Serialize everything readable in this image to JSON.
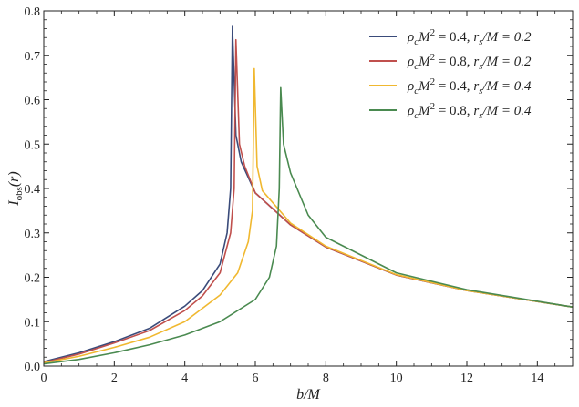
{
  "chart_data": {
    "type": "line",
    "title": "",
    "xlabel": "b/M",
    "ylabel": "I_obs(r)",
    "xlim": [
      0,
      15
    ],
    "ylim": [
      0,
      0.8
    ],
    "xticks": [
      0,
      2,
      4,
      6,
      8,
      10,
      12,
      14
    ],
    "yticks": [
      0.0,
      0.1,
      0.2,
      0.3,
      0.4,
      0.5,
      0.6,
      0.7,
      0.8
    ],
    "xtick_labels": [
      "0",
      "2",
      "4",
      "6",
      "8",
      "10",
      "12",
      "14"
    ],
    "ytick_labels": [
      "0.0",
      "0.1",
      "0.2",
      "0.3",
      "0.4",
      "0.5",
      "0.6",
      "0.7",
      "0.8"
    ],
    "grid": false,
    "legend_position": "top-right",
    "series": [
      {
        "name": "ρcM² = 0.4, rs/M = 0.2",
        "color": "#3a4b7a",
        "x": [
          0,
          1,
          2,
          3,
          4,
          4.5,
          5.0,
          5.2,
          5.3,
          5.35,
          5.45,
          5.6,
          6.0,
          7.0,
          8.0,
          10.0,
          12.0,
          15.0
        ],
        "y": [
          0.01,
          0.03,
          0.055,
          0.085,
          0.135,
          0.17,
          0.23,
          0.3,
          0.4,
          0.765,
          0.52,
          0.46,
          0.39,
          0.318,
          0.268,
          0.205,
          0.17,
          0.133
        ]
      },
      {
        "name": "ρcM² = 0.8, rs/M = 0.2",
        "color": "#c0504d",
        "x": [
          0,
          1,
          2,
          3,
          4,
          4.5,
          5.0,
          5.3,
          5.4,
          5.45,
          5.55,
          5.7,
          6.0,
          7.0,
          8.0,
          10.0,
          12.0,
          15.0
        ],
        "y": [
          0.008,
          0.027,
          0.052,
          0.08,
          0.125,
          0.158,
          0.21,
          0.3,
          0.4,
          0.735,
          0.5,
          0.45,
          0.39,
          0.318,
          0.268,
          0.205,
          0.17,
          0.133
        ]
      },
      {
        "name": "ρcM² = 0.4, rs/M = 0.4",
        "color": "#f0b830",
        "x": [
          0,
          1,
          2,
          3,
          4,
          5,
          5.5,
          5.8,
          5.92,
          5.97,
          6.05,
          6.2,
          7.0,
          8.0,
          10.0,
          12.0,
          15.0
        ],
        "y": [
          0.007,
          0.022,
          0.042,
          0.065,
          0.1,
          0.16,
          0.21,
          0.28,
          0.35,
          0.67,
          0.45,
          0.395,
          0.322,
          0.27,
          0.206,
          0.17,
          0.133
        ]
      },
      {
        "name": "ρcM² = 0.8, rs/M = 0.4",
        "color": "#4a8a50",
        "x": [
          0,
          1,
          2,
          3,
          4,
          5,
          6.0,
          6.4,
          6.6,
          6.68,
          6.72,
          6.8,
          7.0,
          7.5,
          8.0,
          10.0,
          12.0,
          15.0
        ],
        "y": [
          0.005,
          0.015,
          0.03,
          0.048,
          0.07,
          0.1,
          0.15,
          0.2,
          0.27,
          0.4,
          0.627,
          0.5,
          0.435,
          0.34,
          0.29,
          0.21,
          0.172,
          0.133
        ]
      }
    ]
  },
  "legend": {
    "entries": [
      {
        "rho": "ρ",
        "rho_sub": "c",
        "m": "M",
        "m_sup": "2",
        "eq1": " = 0.4, ",
        "r": "r",
        "r_sub": "s",
        "tail": "/M = 0.2"
      },
      {
        "rho": "ρ",
        "rho_sub": "c",
        "m": "M",
        "m_sup": "2",
        "eq1": " = 0.8, ",
        "r": "r",
        "r_sub": "s",
        "tail": "/M = 0.2"
      },
      {
        "rho": "ρ",
        "rho_sub": "c",
        "m": "M",
        "m_sup": "2",
        "eq1": " = 0.4, ",
        "r": "r",
        "r_sub": "s",
        "tail": "/M = 0.4"
      },
      {
        "rho": "ρ",
        "rho_sub": "c",
        "m": "M",
        "m_sup": "2",
        "eq1": " = 0.8, ",
        "r": "r",
        "r_sub": "s",
        "tail": "/M = 0.4"
      }
    ]
  },
  "ylabel_parts": {
    "main": "I",
    "sub": "obs",
    "arg": "(r)"
  }
}
